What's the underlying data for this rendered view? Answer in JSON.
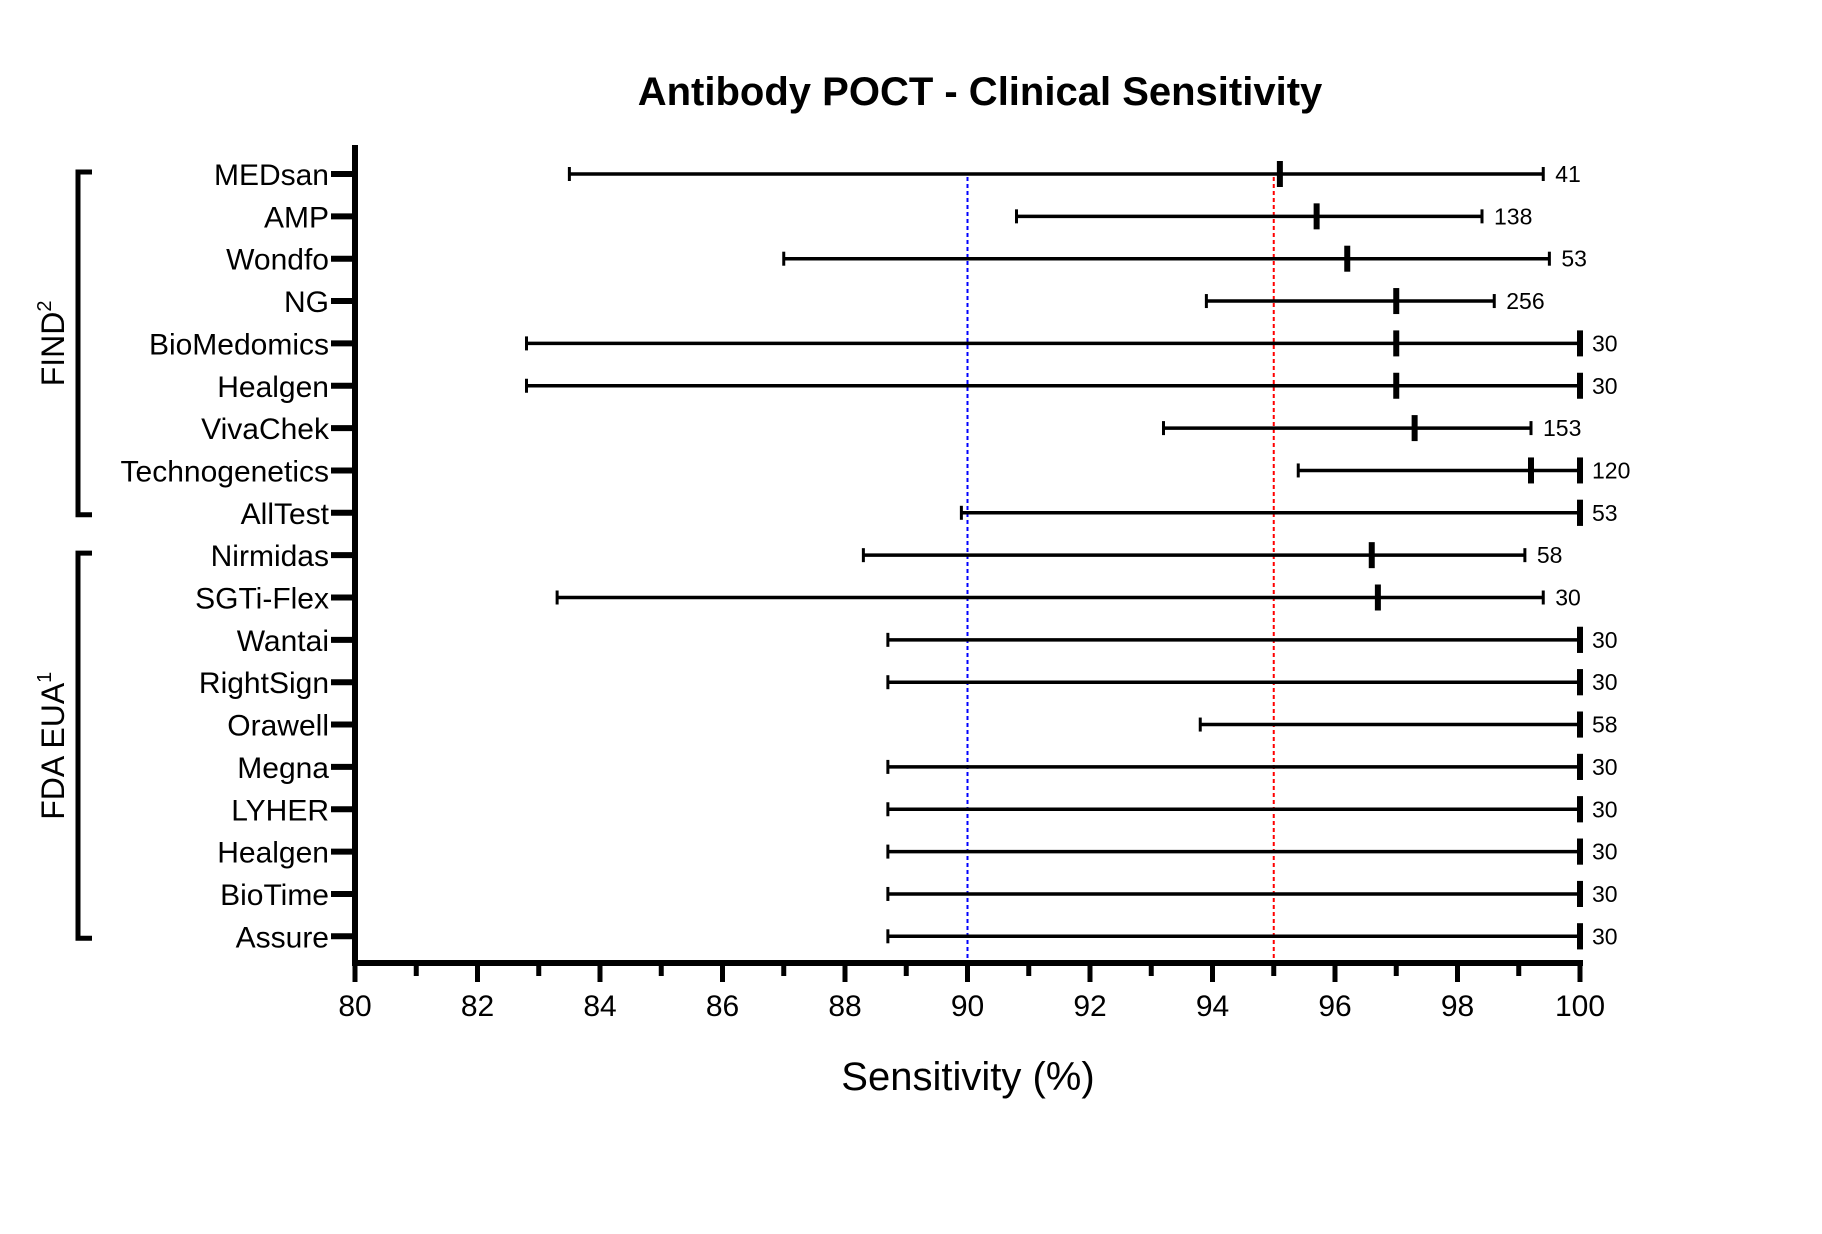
{
  "chart_data": {
    "type": "forest",
    "title": "Antibody POCT - Clinical Sensitivity",
    "xlabel": "Sensitivity (%)",
    "xlim": [
      80,
      100
    ],
    "x_major_ticks": [
      80,
      82,
      84,
      86,
      88,
      90,
      92,
      94,
      96,
      98,
      100
    ],
    "x_minor_ticks": [
      81,
      83,
      85,
      87,
      89,
      91,
      93,
      95,
      97,
      99
    ],
    "reference_lines": [
      {
        "value": 90,
        "color": "#0000ff",
        "style": "dotted"
      },
      {
        "value": 95,
        "color": "#ff0000",
        "style": "dotted"
      }
    ],
    "groups": [
      {
        "label": "FIND",
        "superscript": "2",
        "from": "MEDsan",
        "to": "AllTest"
      },
      {
        "label": "FDA EUA",
        "superscript": "1",
        "from": "Nirmidas",
        "to": "Assure"
      }
    ],
    "rows": [
      {
        "label": "MEDsan",
        "low": 83.5,
        "point": 95.1,
        "high": 99.4,
        "n": "41"
      },
      {
        "label": "AMP",
        "low": 90.8,
        "point": 95.7,
        "high": 98.4,
        "n": "138"
      },
      {
        "label": "Wondfo",
        "low": 87.0,
        "point": 96.2,
        "high": 99.5,
        "n": "53"
      },
      {
        "label": "NG",
        "low": 93.9,
        "point": 97.0,
        "high": 98.6,
        "n": "256"
      },
      {
        "label": "BioMedomics",
        "low": 82.8,
        "point": 97.0,
        "high": 100,
        "n": "30"
      },
      {
        "label": "Healgen",
        "low": 82.8,
        "point": 97.0,
        "high": 100,
        "n": "30"
      },
      {
        "label": "VivaChek",
        "low": 93.2,
        "point": 97.3,
        "high": 99.2,
        "n": "153"
      },
      {
        "label": "Technogenetics",
        "low": 95.4,
        "point": 99.2,
        "high": 100,
        "n": "120"
      },
      {
        "label": "AllTest",
        "low": 89.9,
        "point": 100,
        "high": 100,
        "n": "53"
      },
      {
        "label": "Nirmidas",
        "low": 88.3,
        "point": 96.6,
        "high": 99.1,
        "n": "58"
      },
      {
        "label": "SGTi-Flex",
        "low": 83.3,
        "point": 96.7,
        "high": 99.4,
        "n": "30"
      },
      {
        "label": "Wantai",
        "low": 88.7,
        "point": 100,
        "high": 100,
        "n": "30"
      },
      {
        "label": "RightSign",
        "low": 88.7,
        "point": 100,
        "high": 100,
        "n": "30"
      },
      {
        "label": "Orawell",
        "low": 93.8,
        "point": 100,
        "high": 100,
        "n": "58"
      },
      {
        "label": "Megna",
        "low": 88.7,
        "point": 100,
        "high": 100,
        "n": "30"
      },
      {
        "label": "LYHER",
        "low": 88.7,
        "point": 100,
        "high": 100,
        "n": "30"
      },
      {
        "label": "Healgen",
        "low": 88.7,
        "point": 100,
        "high": 100,
        "n": "30"
      },
      {
        "label": "BioTime",
        "low": 88.7,
        "point": 100,
        "high": 100,
        "n": "30"
      },
      {
        "label": "Assure",
        "low": 88.7,
        "point": 100,
        "high": 100,
        "n": "30"
      }
    ]
  }
}
